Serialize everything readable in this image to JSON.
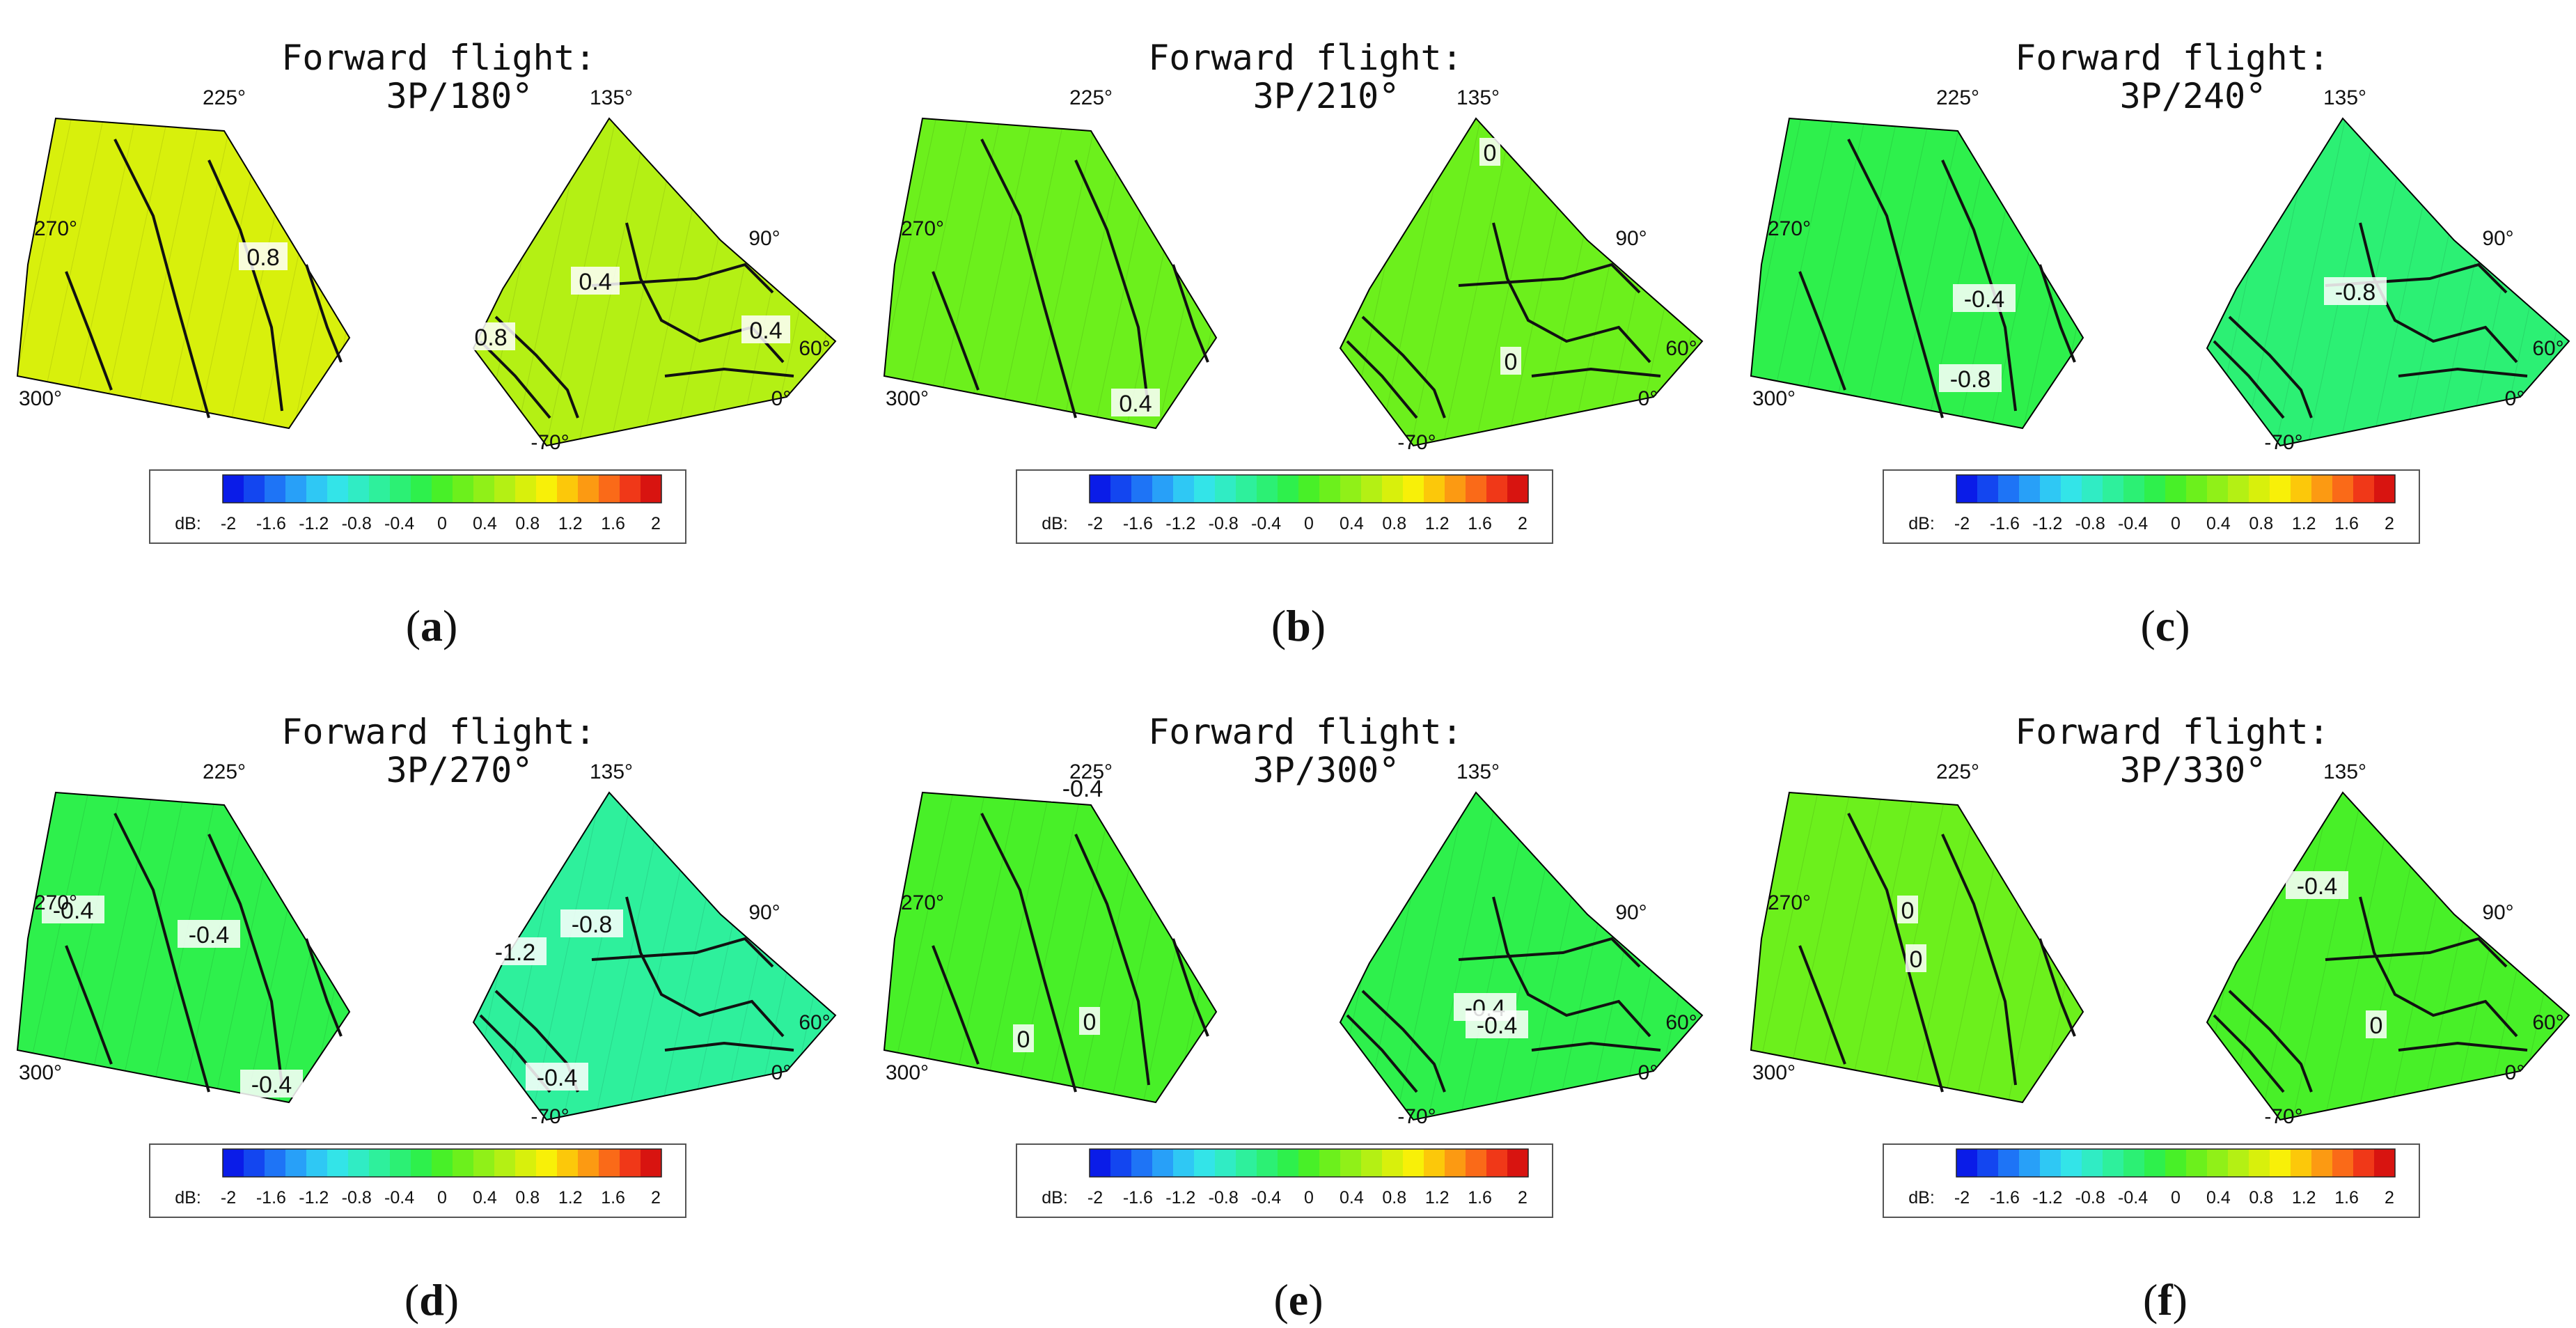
{
  "chart_data": {
    "type": "contour",
    "units_label": "dB:",
    "colorbar": {
      "ticks": [
        "-2",
        "-1.6",
        "-1.2",
        "-0.8",
        "-0.4",
        "0",
        "0.4",
        "0.8",
        "1.2",
        "1.6",
        "2"
      ],
      "min": -2,
      "max": 2,
      "levels": 20,
      "colors": [
        "#0a1ce8",
        "#1346f0",
        "#1e74f6",
        "#28a0f8",
        "#2fc8f4",
        "#33e4e8",
        "#30ecc4",
        "#2ef09c",
        "#2cf074",
        "#2ef04c",
        "#48f028",
        "#6cf01c",
        "#90f018",
        "#b4f014",
        "#d8f00c",
        "#f8f008",
        "#fcc80a",
        "#fc9a12",
        "#fa6a18",
        "#f03818",
        "#d81410"
      ]
    },
    "panels": [
      {
        "caption": "a",
        "title_line1": "Forward flight:",
        "title_line2": "3P/180°",
        "left_angles": [
          "225°",
          "270°",
          "300°"
        ],
        "right_angles": [
          "135°",
          "90°",
          "60°",
          "0°",
          "-70°"
        ],
        "left_value": 0.75,
        "right_value": 0.5,
        "contour_labels": [
          "0.8",
          "0.4",
          "0.8",
          "0.4"
        ]
      },
      {
        "caption": "b",
        "title_line1": "Forward flight:",
        "title_line2": "3P/210°",
        "left_angles": [
          "225°",
          "270°",
          "300°"
        ],
        "right_angles": [
          "135°",
          "90°",
          "60°",
          "0°",
          "-70°"
        ],
        "left_value": 0.25,
        "right_value": 0.1,
        "contour_labels": [
          "0.4",
          "0",
          "0"
        ]
      },
      {
        "caption": "c",
        "title_line1": "Forward flight:",
        "title_line2": "3P/240°",
        "left_angles": [
          "225°",
          "270°",
          "300°"
        ],
        "right_angles": [
          "135°",
          "90°",
          "60°",
          "0°",
          "-70°"
        ],
        "left_value": -0.3,
        "right_value": -0.4,
        "contour_labels": [
          "-0.4",
          "-0.8",
          "-0.8"
        ]
      },
      {
        "caption": "d",
        "title_line1": "Forward flight:",
        "title_line2": "3P/270°",
        "left_angles": [
          "225°",
          "270°",
          "300°"
        ],
        "right_angles": [
          "135°",
          "90°",
          "60°",
          "0°",
          "-70°"
        ],
        "left_value": -0.3,
        "right_value": -0.6,
        "contour_labels": [
          "-0.4",
          "-0.4",
          "-0.4",
          "-1.2",
          "-0.8",
          "-0.4"
        ]
      },
      {
        "caption": "e",
        "title_line1": "Forward flight:",
        "title_line2": "3P/300°",
        "left_angles": [
          "225°",
          "270°",
          "300°"
        ],
        "right_angles": [
          "135°",
          "90°",
          "60°",
          "0°",
          "-70°"
        ],
        "left_value": 0.05,
        "right_value": -0.2,
        "contour_labels": [
          "-0.4",
          "0",
          "0",
          "-0.4",
          "-0.4"
        ]
      },
      {
        "caption": "f",
        "title_line1": "Forward flight:",
        "title_line2": "3P/330°",
        "left_angles": [
          "225°",
          "270°",
          "300°"
        ],
        "right_angles": [
          "135°",
          "90°",
          "60°",
          "0°",
          "-70°"
        ],
        "left_value": 0.15,
        "right_value": -0.1,
        "contour_labels": [
          "0",
          "0",
          "-0.4",
          "0"
        ]
      }
    ]
  }
}
